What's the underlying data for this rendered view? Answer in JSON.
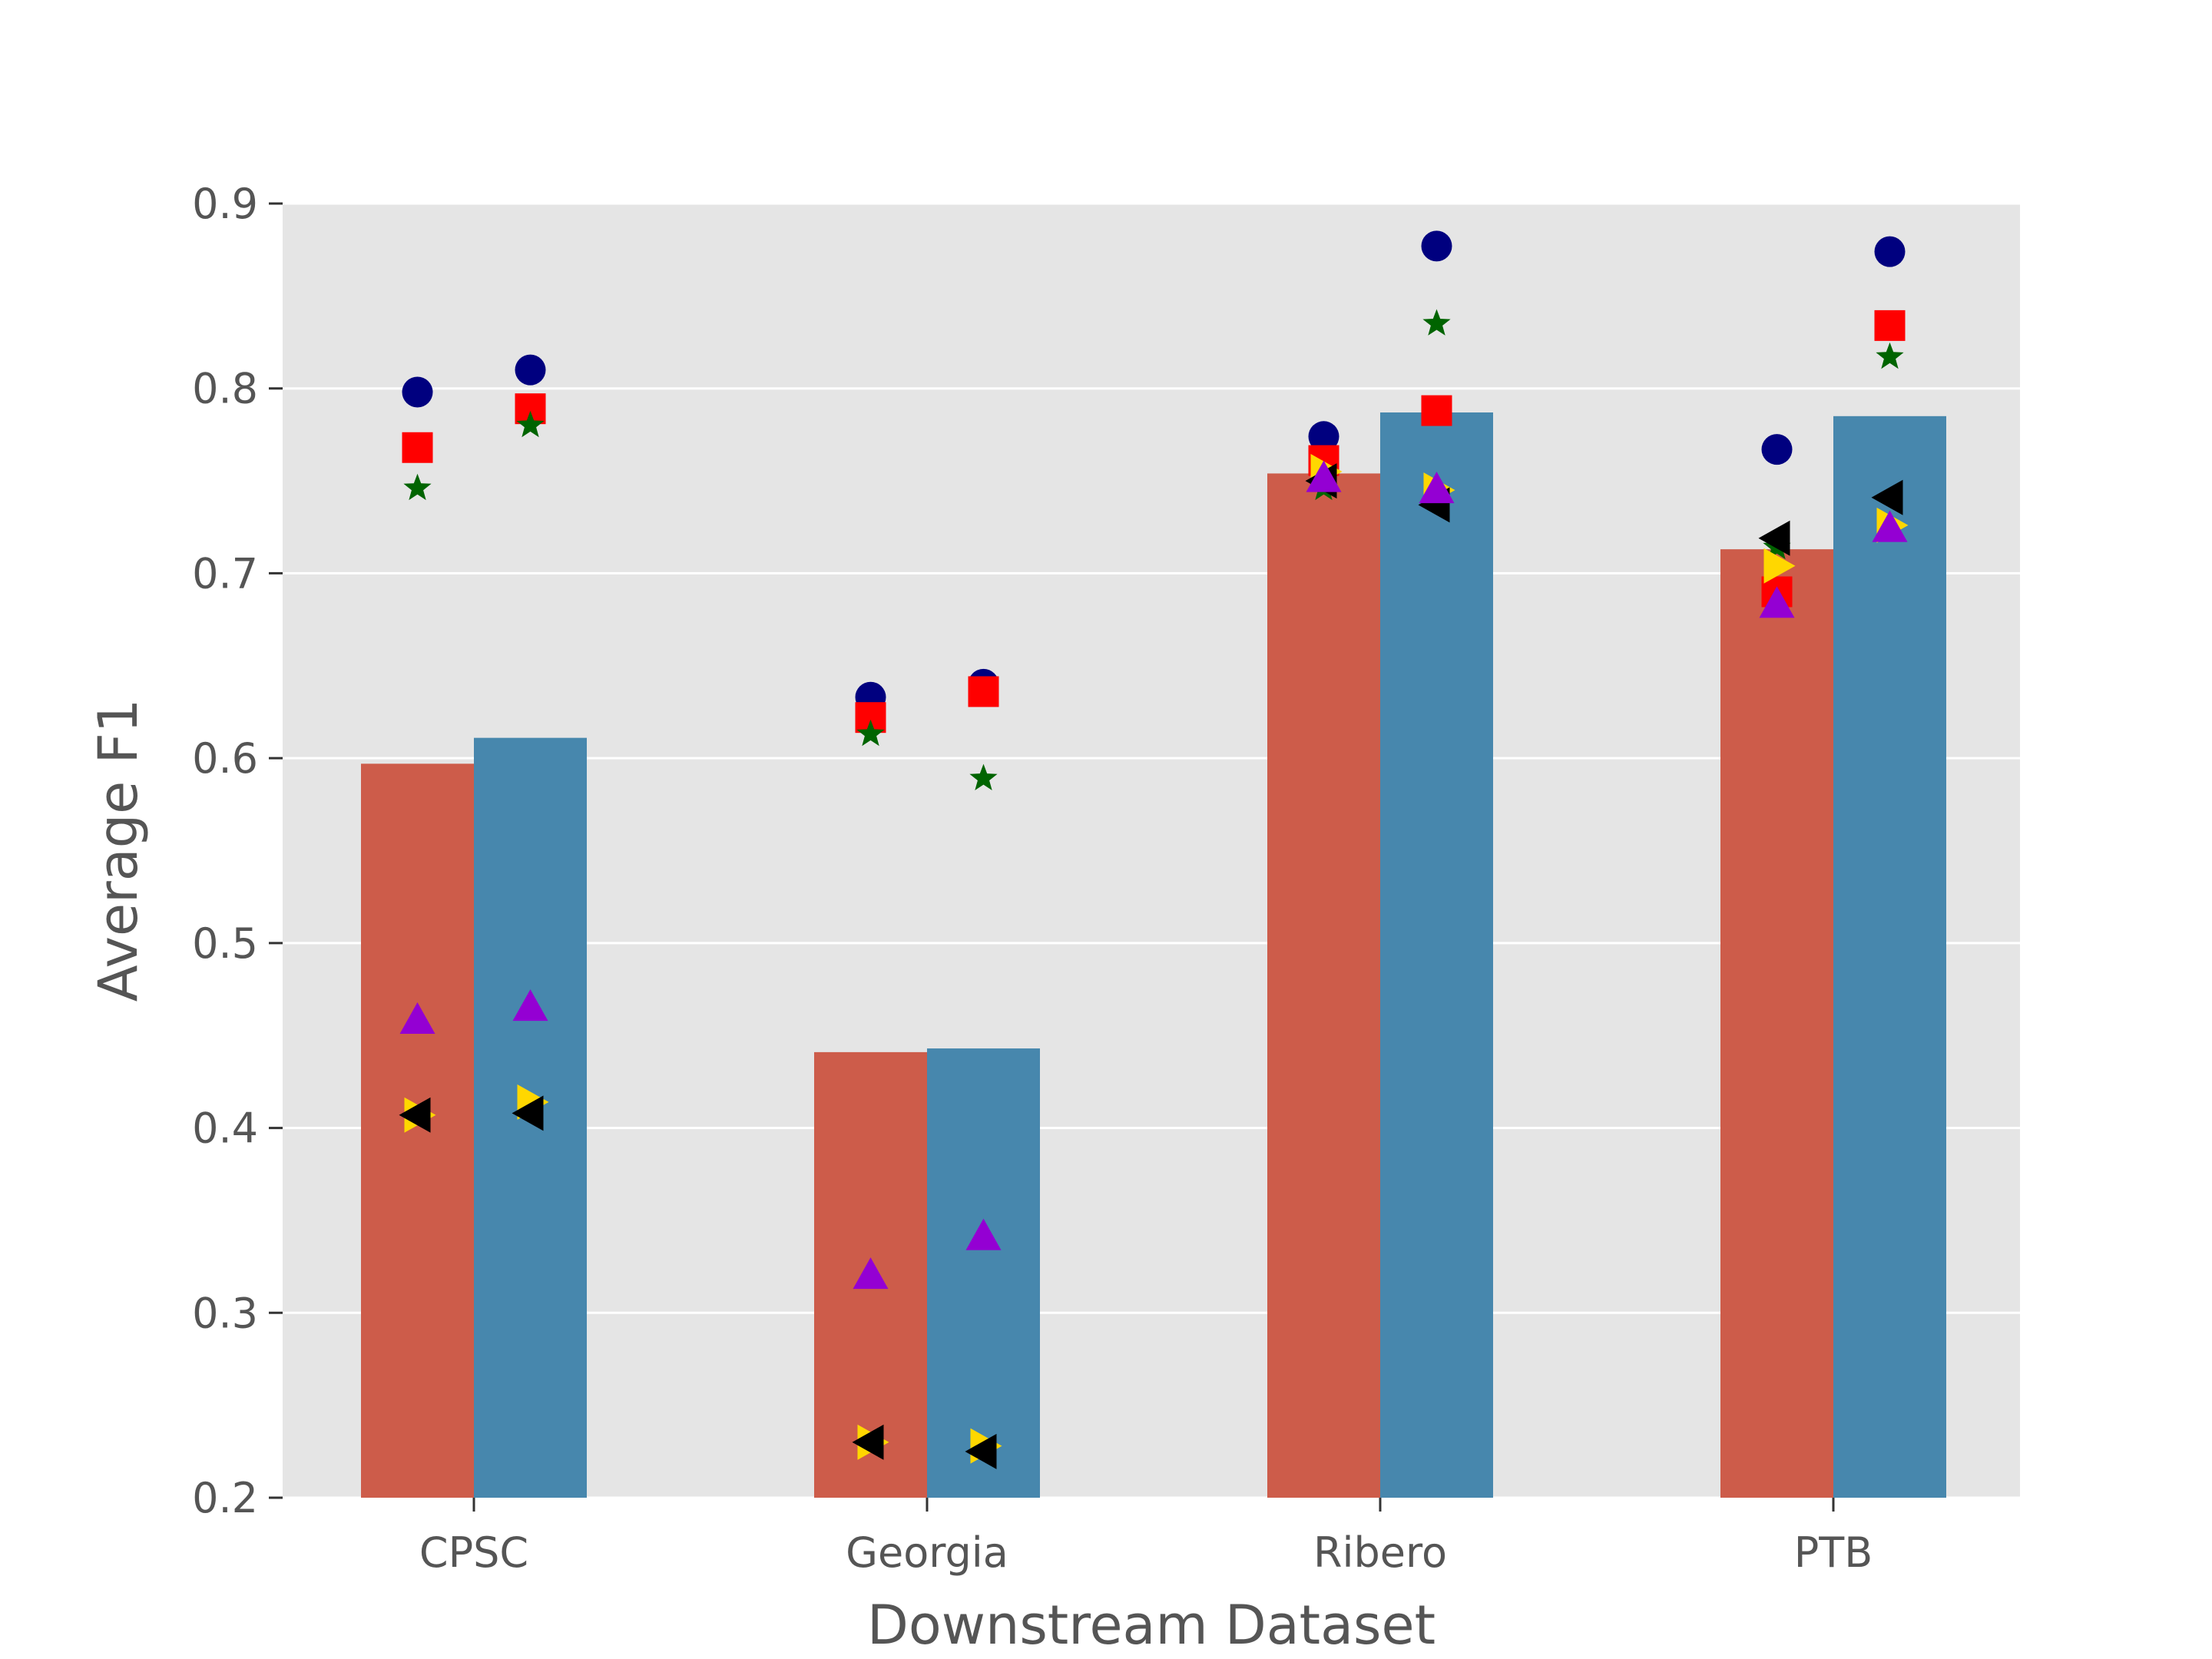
{
  "chart_data": {
    "type": "bar",
    "title": "",
    "xlabel": "Downstream Dataset",
    "ylabel": "Average F1",
    "categories": [
      "CPSC",
      "Georgia",
      "Ribero",
      "PTB"
    ],
    "ylim": [
      0.2,
      0.9
    ],
    "yticks": [
      0.2,
      0.3,
      0.4,
      0.5,
      0.6,
      0.7,
      0.8,
      0.9
    ],
    "ytick_labels": [
      "0.2",
      "0.3",
      "0.4",
      "0.5",
      "0.6",
      "0.7",
      "0.8",
      "0.9"
    ],
    "grid": true,
    "colors": {
      "background": "#e5e5e5",
      "grid": "#ffffff",
      "axis_text": "#555555"
    },
    "series": [
      {
        "name": "bar-left",
        "color": "#cd5c4a",
        "values": [
          0.597,
          0.441,
          0.754,
          0.713
        ]
      },
      {
        "name": "bar-right",
        "color": "#4787ad",
        "values": [
          0.611,
          0.443,
          0.787,
          0.785
        ]
      }
    ],
    "markers": [
      {
        "name": "circle",
        "shape": "circle",
        "color": "#00007f",
        "left": [
          0.798,
          0.633,
          0.774,
          0.767
        ],
        "right": [
          0.81,
          0.64,
          0.877,
          0.874
        ]
      },
      {
        "name": "square",
        "shape": "square",
        "color": "#ff0000",
        "left": [
          0.768,
          0.622,
          0.761,
          0.69
        ],
        "right": [
          0.789,
          0.636,
          0.788,
          0.834
        ]
      },
      {
        "name": "star",
        "shape": "star",
        "color": "#006400",
        "left": [
          0.746,
          0.613,
          0.746,
          0.714
        ],
        "right": [
          0.78,
          0.589,
          0.835,
          0.817
        ]
      },
      {
        "name": "triangle-right",
        "shape": "triangle-right",
        "color": "#ffd700",
        "left": [
          0.407,
          0.23,
          0.755,
          0.704
        ],
        "right": [
          0.414,
          0.228,
          0.745,
          0.726
        ]
      },
      {
        "name": "triangle-left",
        "shape": "triangle-left",
        "color": "#000000",
        "left": [
          0.407,
          0.23,
          0.75,
          0.719
        ],
        "right": [
          0.408,
          0.225,
          0.737,
          0.741
        ]
      },
      {
        "name": "triangle-up",
        "shape": "triangle-up",
        "color": "#9400d3",
        "left": [
          0.458,
          0.32,
          0.751,
          0.683
        ],
        "right": [
          0.465,
          0.341,
          0.745,
          0.724
        ]
      }
    ]
  }
}
